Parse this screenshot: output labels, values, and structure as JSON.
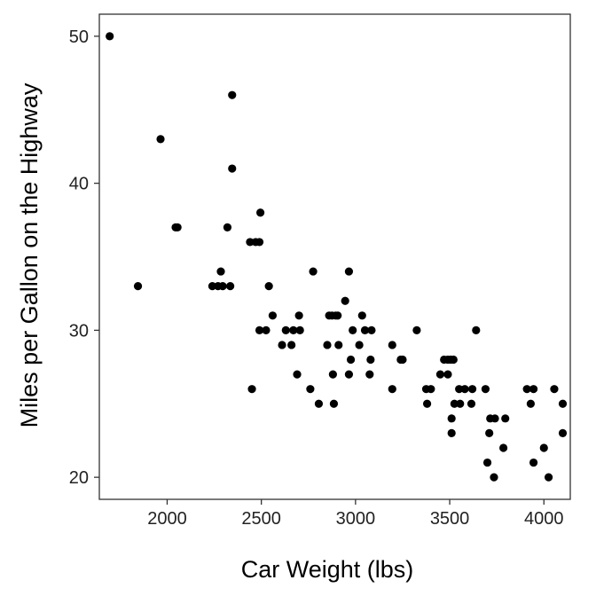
{
  "chart_data": {
    "type": "scatter",
    "title": "",
    "xlabel": "Car Weight (lbs)",
    "ylabel": "Miles per Gallon on the Highway",
    "xlim": [
      1640,
      4140
    ],
    "ylim": [
      18.5,
      51.5
    ],
    "xticks": [
      2000,
      2500,
      3000,
      3500,
      4000
    ],
    "yticks": [
      20,
      30,
      40,
      50
    ],
    "grid": false,
    "legend": "none",
    "point_color": "#000000",
    "series": [
      {
        "points": [
          [
            1695,
            50
          ],
          [
            1845,
            33
          ],
          [
            1965,
            43
          ],
          [
            2045,
            37
          ],
          [
            2055,
            37
          ],
          [
            2240,
            33
          ],
          [
            2270,
            33
          ],
          [
            2285,
            34
          ],
          [
            2295,
            33
          ],
          [
            2320,
            37
          ],
          [
            2335,
            33
          ],
          [
            2345,
            46
          ],
          [
            2345,
            41
          ],
          [
            2440,
            36
          ],
          [
            2450,
            26
          ],
          [
            2470,
            36
          ],
          [
            2490,
            30
          ],
          [
            2490,
            36
          ],
          [
            2495,
            38
          ],
          [
            2525,
            30
          ],
          [
            2540,
            33
          ],
          [
            2560,
            31
          ],
          [
            2610,
            29
          ],
          [
            2630,
            30
          ],
          [
            2660,
            29
          ],
          [
            2670,
            30
          ],
          [
            2690,
            27
          ],
          [
            2700,
            31
          ],
          [
            2705,
            30
          ],
          [
            2760,
            26
          ],
          [
            2775,
            34
          ],
          [
            2805,
            25
          ],
          [
            2850,
            29
          ],
          [
            2860,
            31
          ],
          [
            2875,
            31
          ],
          [
            2880,
            27
          ],
          [
            2885,
            25
          ],
          [
            2895,
            31
          ],
          [
            2905,
            31
          ],
          [
            2910,
            29
          ],
          [
            2945,
            32
          ],
          [
            2965,
            34
          ],
          [
            2965,
            27
          ],
          [
            2975,
            28
          ],
          [
            2985,
            30
          ],
          [
            3020,
            29
          ],
          [
            3035,
            31
          ],
          [
            3050,
            30
          ],
          [
            3075,
            27
          ],
          [
            3080,
            28
          ],
          [
            3085,
            30
          ],
          [
            3195,
            26
          ],
          [
            3195,
            29
          ],
          [
            3240,
            28
          ],
          [
            3250,
            28
          ],
          [
            3325,
            30
          ],
          [
            3375,
            26
          ],
          [
            3380,
            25
          ],
          [
            3400,
            26
          ],
          [
            3450,
            27
          ],
          [
            3470,
            28
          ],
          [
            3490,
            28
          ],
          [
            3490,
            27
          ],
          [
            3505,
            28
          ],
          [
            3510,
            24
          ],
          [
            3510,
            23
          ],
          [
            3520,
            28
          ],
          [
            3525,
            25
          ],
          [
            3550,
            26
          ],
          [
            3555,
            25
          ],
          [
            3580,
            26
          ],
          [
            3615,
            25
          ],
          [
            3620,
            26
          ],
          [
            3640,
            30
          ],
          [
            3690,
            26
          ],
          [
            3700,
            21
          ],
          [
            3710,
            23
          ],
          [
            3715,
            24
          ],
          [
            3735,
            20
          ],
          [
            3740,
            24
          ],
          [
            3785,
            22
          ],
          [
            3795,
            24
          ],
          [
            3910,
            26
          ],
          [
            3930,
            25
          ],
          [
            3945,
            26
          ],
          [
            3945,
            21
          ],
          [
            4000,
            22
          ],
          [
            4025,
            20
          ],
          [
            4055,
            26
          ],
          [
            4100,
            25
          ],
          [
            4100,
            23
          ]
        ]
      }
    ]
  }
}
